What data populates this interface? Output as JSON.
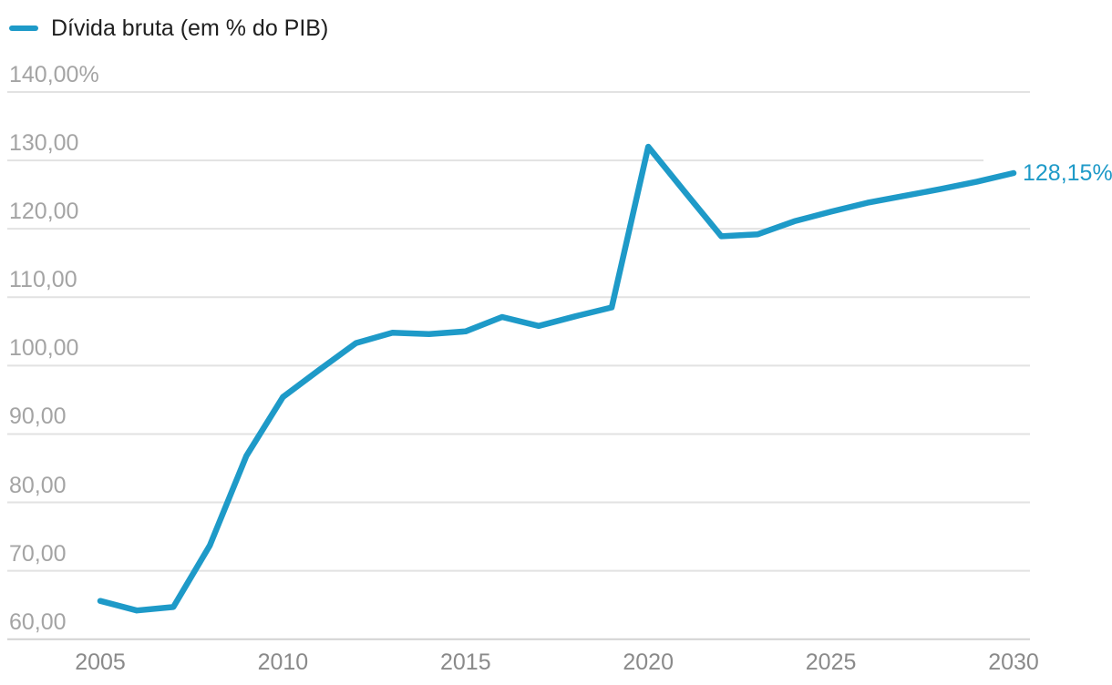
{
  "legend": {
    "label": "Dívida bruta (em % do PIB)"
  },
  "end_label": "128,15%",
  "colors": {
    "line": "#1e9ac8",
    "end_label": "#1e9ac8",
    "grid": "#e2e2e2",
    "baseline": "#d2d2d2",
    "y_tick_text": "#a4a4a4",
    "x_tick_text": "#8a8a8a",
    "legend_text": "#1f1f1f",
    "background": "#ffffff"
  },
  "chart_data": {
    "type": "line",
    "title": "",
    "series": [
      {
        "name": "Dívida bruta (em % do PIB)",
        "x": [
          2005,
          2006,
          2007,
          2008,
          2009,
          2010,
          2011,
          2012,
          2013,
          2014,
          2015,
          2016,
          2017,
          2018,
          2019,
          2020,
          2021,
          2022,
          2023,
          2024,
          2025,
          2026,
          2027,
          2028,
          2029,
          2030
        ],
        "values": [
          65.6,
          64.2,
          64.7,
          73.7,
          86.8,
          95.4,
          99.4,
          103.3,
          104.8,
          104.6,
          105.0,
          107.1,
          105.8,
          107.2,
          108.5,
          132.0,
          125.4,
          118.9,
          119.2,
          121.1,
          122.5,
          123.8,
          124.8,
          125.8,
          126.9,
          128.15
        ]
      }
    ],
    "xlabel": "",
    "ylabel": "",
    "xlim": [
      2005,
      2030
    ],
    "ylim": [
      60,
      140
    ],
    "grid": "horizontal",
    "legend_position": "top-left",
    "end_value_label": "128,15%",
    "y_ticks": [
      {
        "value": 140,
        "label": "140,00%"
      },
      {
        "value": 130,
        "label": "130,00"
      },
      {
        "value": 120,
        "label": "120,00"
      },
      {
        "value": 110,
        "label": "110,00"
      },
      {
        "value": 100,
        "label": "100,00"
      },
      {
        "value": 90,
        "label": "90,00"
      },
      {
        "value": 80,
        "label": "80,00"
      },
      {
        "value": 70,
        "label": "70,00"
      },
      {
        "value": 60,
        "label": "60,00"
      }
    ],
    "x_ticks": [
      {
        "value": 2005,
        "label": "2005"
      },
      {
        "value": 2010,
        "label": "2010"
      },
      {
        "value": 2015,
        "label": "2015"
      },
      {
        "value": 2020,
        "label": "2020"
      },
      {
        "value": 2025,
        "label": "2025"
      },
      {
        "value": 2030,
        "label": "2030"
      }
    ]
  }
}
